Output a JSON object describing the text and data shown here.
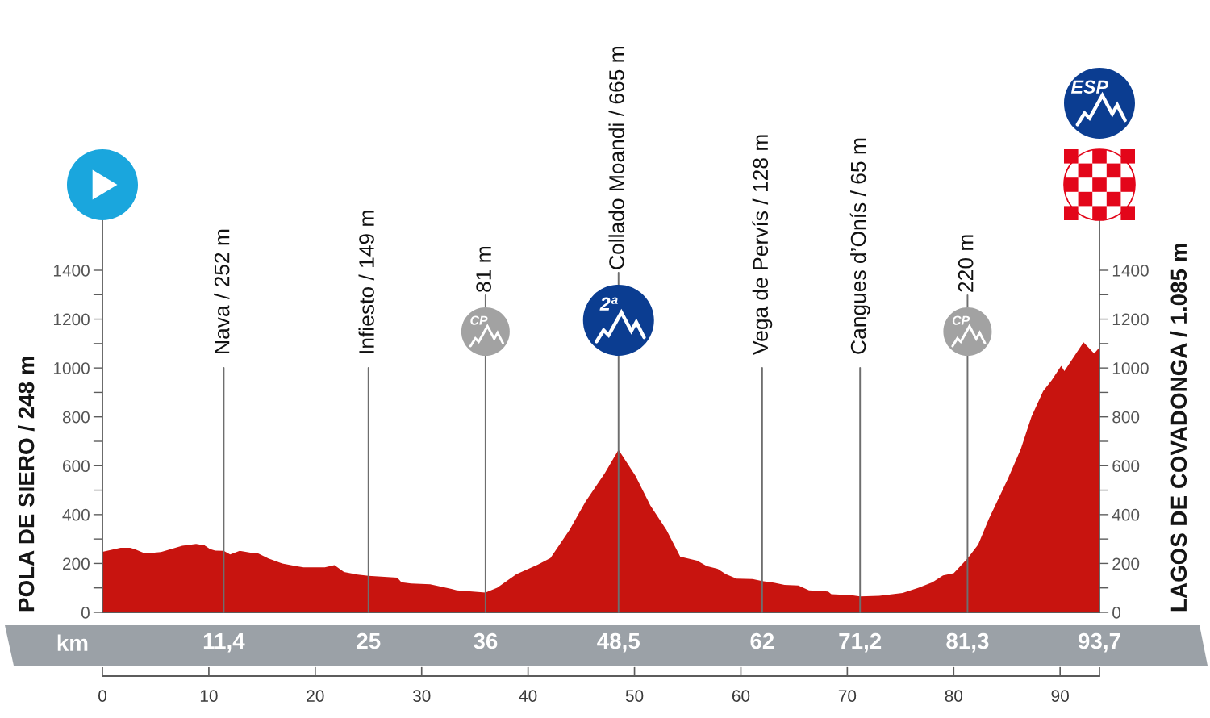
{
  "chart_data": {
    "type": "area",
    "ylabel": "POLA DE SIERO / 248 m",
    "y2label": "LAGOS DE COVADONGA / 1.085 m",
    "x2label": "km",
    "x": [
      0,
      1.7,
      2.6,
      3.0,
      4.0,
      5.5,
      7.5,
      8.8,
      9.6,
      10.1,
      10.6,
      11.4,
      12.0,
      12.9,
      13.9,
      14.6,
      15.6,
      16.9,
      18.2,
      18.9,
      20.9,
      21.8,
      22.7,
      24.0,
      25,
      27.7,
      28.1,
      29.0,
      30.8,
      32.8,
      33.3,
      36,
      37.1,
      38.9,
      40.9,
      42.1,
      43.9,
      45.4,
      47.2,
      48.5,
      50.1,
      51.5,
      53.0,
      54.3,
      55.9,
      56.8,
      57.8,
      58.6,
      59.6,
      61.1,
      62,
      63.1,
      64.1,
      65.4,
      66.4,
      68.2,
      68.5,
      70.4,
      71.2,
      73.0,
      75.2,
      76.7,
      78.0,
      79.0,
      80.0,
      81.3,
      82.3,
      83.3,
      85.1,
      86.3,
      87.3,
      88.4,
      89.2,
      90.1,
      90.4,
      92.2,
      93.2,
      93.7
    ],
    "series": [
      {
        "color": "#c8140f",
        "values": [
          248,
          264,
          264,
          259,
          241,
          247,
          272,
          280,
          274,
          259,
          253,
          252,
          237,
          252,
          244,
          242,
          220,
          200,
          189,
          184,
          184,
          193,
          165,
          154,
          149,
          142,
          123,
          118,
          115,
          96,
          90,
          81,
          101,
          156,
          195,
          222,
          338,
          453,
          569,
          665,
          558,
          437,
          338,
          228,
          211,
          189,
          178,
          156,
          138,
          136,
          128,
          121,
          112,
          110,
          90,
          85,
          74,
          70,
          65,
          68,
          79,
          101,
          123,
          151,
          160,
          220,
          277,
          382,
          547,
          668,
          800,
          905,
          949,
          1009,
          987,
          1105,
          1059,
          1085
        ]
      }
    ],
    "xlim": [
      0,
      93.7
    ],
    "xticks": [
      0,
      10,
      20,
      30,
      40,
      50,
      60,
      70,
      80,
      90,
      {
        "value": 93.7,
        "label": null
      }
    ],
    "x2lim": [
      0,
      93.7
    ],
    "x2ticks": [
      {
        "value": 11.4,
        "label": "11,4"
      },
      25,
      36,
      {
        "value": 48.5,
        "label": "48,5"
      },
      62,
      {
        "value": 71.2,
        "label": "71,2"
      },
      {
        "value": 81.3,
        "label": "81,3"
      },
      {
        "value": 93.7,
        "label": "93,7"
      }
    ],
    "ylim": [
      0,
      1750
    ],
    "yticks": [
      0,
      {
        "value": 100,
        "label": null
      },
      200,
      {
        "value": 300,
        "label": null
      },
      400,
      {
        "value": 500,
        "label": null
      },
      600,
      {
        "value": 700,
        "label": null
      },
      800,
      {
        "value": 900,
        "label": null
      },
      1000,
      {
        "value": 1100,
        "label": null
      },
      1200,
      {
        "value": 1300,
        "label": null
      },
      1400
    ],
    "y2lim": [
      0,
      1750
    ],
    "y2ticks": [
      0,
      {
        "value": 100,
        "label": null
      },
      200,
      {
        "value": 300,
        "label": null
      },
      400,
      {
        "value": 500,
        "label": null
      },
      600,
      {
        "value": 700,
        "label": null
      },
      800,
      {
        "value": 900,
        "label": null
      },
      1000,
      {
        "value": 1100,
        "label": null
      },
      1200,
      {
        "value": 1300,
        "label": null
      },
      1400
    ],
    "ref_lines": [
      {
        "axis": "x",
        "value": 11.4,
        "label": "Nava / 252 m",
        "color": "#6e6e6e"
      },
      {
        "axis": "x",
        "value": 25,
        "label": "Infiesto / 149 m",
        "color": "#6e6e6e"
      },
      {
        "axis": "x",
        "value": 36,
        "label": "81 m",
        "color": "#6e6e6e"
      },
      {
        "axis": "x",
        "value": 48.5,
        "label": "Collado Moandi / 665 m",
        "color": "#6e6e6e"
      },
      {
        "axis": "x",
        "value": 62,
        "label": "Vega de Pervís / 128 m",
        "color": "#6e6e6e"
      },
      {
        "axis": "x",
        "value": 71.2,
        "label": "Cangues d’Onís / 65 m",
        "color": "#6e6e6e"
      },
      {
        "axis": "x",
        "value": 81.3,
        "label": "220 m",
        "color": "#6e6e6e"
      }
    ],
    "annotations": [
      "CP",
      "2ª",
      "CP",
      "ESP"
    ]
  }
}
